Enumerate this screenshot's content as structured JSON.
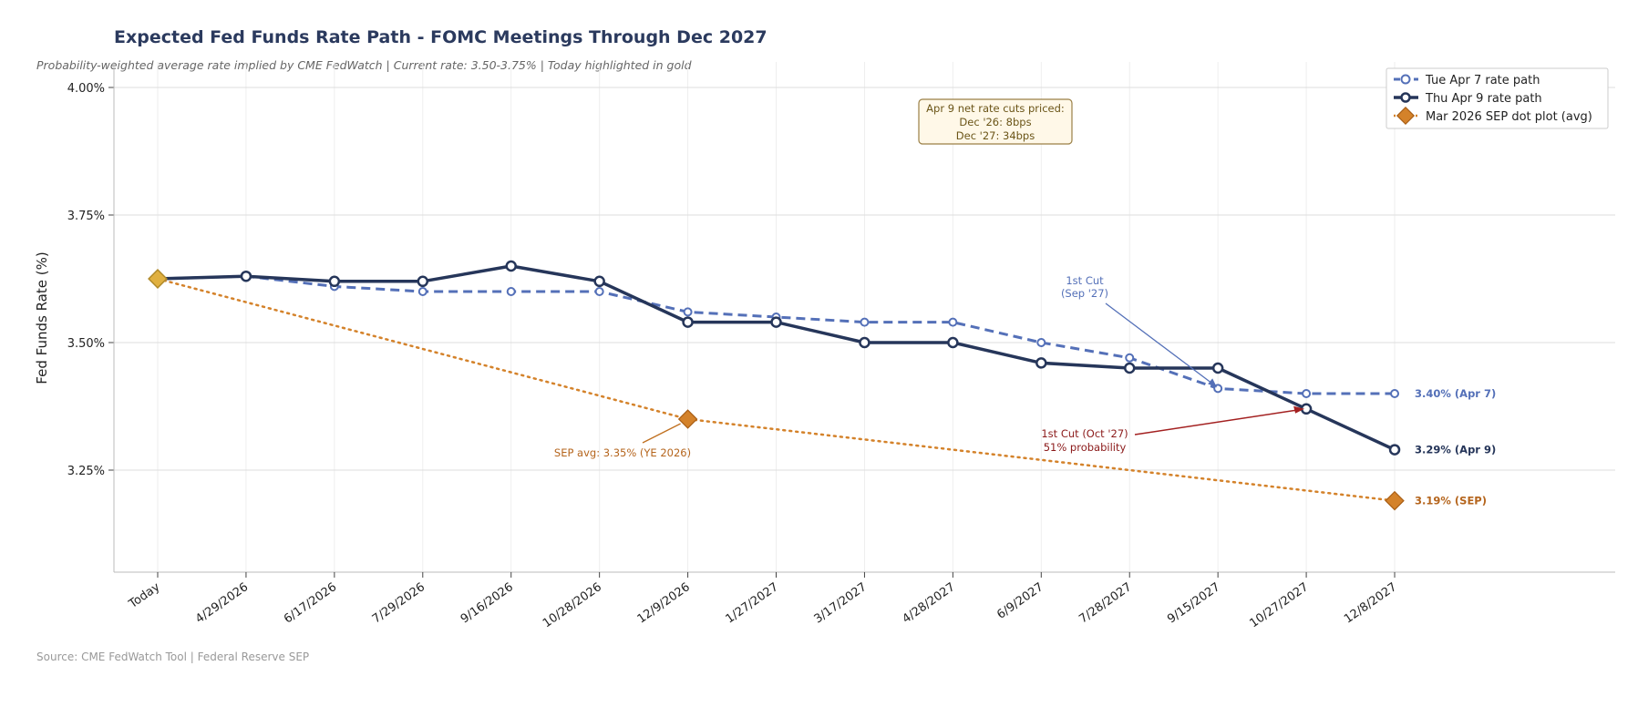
{
  "chart_data": {
    "type": "line",
    "title": "Expected Fed Funds Rate Path - FOMC Meetings Through Dec 2027",
    "subtitle": "Probability-weighted average rate implied by CME FedWatch  |  Current rate: 3.50-3.75%  |  Today highlighted in gold",
    "source": "Source: CME FedWatch Tool  |  Federal Reserve SEP",
    "xlabel": "",
    "ylabel": "Fed Funds Rate (%)",
    "ylim": [
      3.05,
      4.05
    ],
    "yticks": [
      3.25,
      3.5,
      3.75,
      4.0
    ],
    "ytick_labels": [
      "3.25%",
      "3.50%",
      "3.75%",
      "4.00%"
    ],
    "categories": [
      "Today",
      "4/29/2026",
      "6/17/2026",
      "7/29/2026",
      "9/16/2026",
      "10/28/2026",
      "12/9/2026",
      "1/27/2027",
      "3/17/2027",
      "4/28/2027",
      "6/9/2027",
      "7/28/2027",
      "9/15/2027",
      "10/27/2027",
      "12/8/2027"
    ],
    "series": [
      {
        "name": "Tue Apr 7 rate path",
        "color": "#5470b8",
        "style": "dashed",
        "values": [
          3.625,
          3.63,
          3.61,
          3.6,
          3.6,
          3.6,
          3.56,
          3.55,
          3.54,
          3.54,
          3.5,
          3.47,
          3.41,
          3.4,
          3.4
        ],
        "end_label": "3.40% (Apr 7)"
      },
      {
        "name": "Thu Apr 9 rate path",
        "color": "#26365a",
        "style": "solid",
        "values": [
          3.625,
          3.63,
          3.62,
          3.62,
          3.65,
          3.62,
          3.54,
          3.54,
          3.5,
          3.5,
          3.46,
          3.45,
          3.45,
          3.37,
          3.29
        ],
        "end_label": "3.29% (Apr 9)"
      },
      {
        "name": "Mar 2026 SEP dot plot (avg)",
        "color": "#d4822a",
        "style": "dotted",
        "points": [
          {
            "x_index": 0,
            "value": 3.625
          },
          {
            "x_index": 6,
            "value": 3.35
          },
          {
            "x_index": 14,
            "value": 3.19
          }
        ],
        "end_label": "3.19% (SEP)"
      }
    ],
    "today_marker": {
      "x_index": 0,
      "value": 3.625,
      "color": "#e0b040"
    },
    "legend_position": "top-right",
    "grid": true,
    "annotations": {
      "info_box": {
        "lines": [
          "Apr 9 net rate cuts priced:",
          "Dec '26: 8bps",
          "Dec '27: 34bps"
        ]
      },
      "first_cut_apr7": {
        "lines": [
          "1st Cut",
          "(Sep '27)"
        ],
        "target_x_index": 12,
        "target_value": 3.41
      },
      "first_cut_apr9": {
        "lines": [
          "1st Cut (Oct '27)",
          "51% probability"
        ],
        "target_x_index": 13,
        "target_value": 3.37
      },
      "sep_avg": {
        "text": "SEP avg: 3.35% (YE 2026)",
        "target_x_index": 6,
        "target_value": 3.35
      }
    }
  }
}
